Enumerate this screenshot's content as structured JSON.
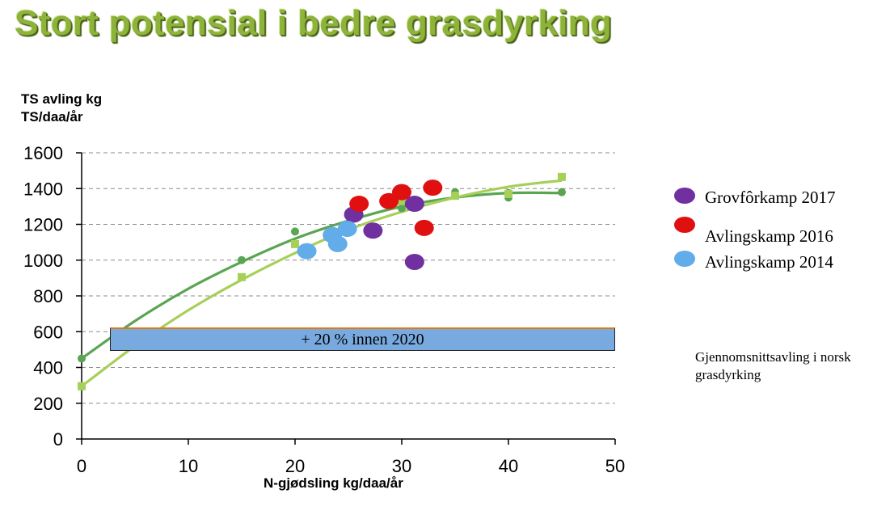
{
  "title": "Stort potensial i bedre grasdyrking",
  "annotation_box": "+ 20 % innen 2020",
  "note": "Gjennomsnittsavling i norsk grasdyrking",
  "colors": {
    "title": "#8db33a",
    "dark_green": "#5aa552",
    "light_green": "#a6d059",
    "purple": "#7030a0",
    "red": "#e01010",
    "light_blue": "#62acea",
    "box_fill": "#78aae0"
  },
  "chart_data": {
    "type": "scatter",
    "ylabel": "TS avling kg TS/daa/år",
    "xlabel": "N-gjødsling kg/daa/år",
    "xlim": [
      0,
      50
    ],
    "ylim": [
      0,
      1600
    ],
    "xticks": [
      0,
      10,
      20,
      30,
      40,
      50
    ],
    "yticks": [
      0,
      200,
      400,
      600,
      800,
      1000,
      1200,
      1400,
      1600
    ],
    "grid": "horizontal-dashed",
    "legend_position": "right",
    "trend_series": [
      {
        "marker": "circle",
        "color": "#5aa552",
        "points": [
          [
            0,
            450
          ],
          [
            15,
            1000
          ],
          [
            20,
            1160
          ],
          [
            30,
            1290
          ],
          [
            35,
            1380
          ],
          [
            40,
            1350
          ],
          [
            40,
            1375
          ],
          [
            45,
            1380
          ]
        ],
        "curve": [
          [
            0,
            450
          ],
          [
            5,
            660
          ],
          [
            10,
            840
          ],
          [
            15,
            990
          ],
          [
            20,
            1120
          ],
          [
            25,
            1220
          ],
          [
            30,
            1300
          ],
          [
            35,
            1350
          ],
          [
            40,
            1375
          ],
          [
            45,
            1375
          ]
        ]
      },
      {
        "marker": "square",
        "color": "#a6d059",
        "points": [
          [
            0,
            295
          ],
          [
            15,
            905
          ],
          [
            20,
            1090
          ],
          [
            30,
            1330
          ],
          [
            35,
            1360
          ],
          [
            40,
            1370
          ],
          [
            45,
            1465
          ]
        ],
        "curve": [
          [
            0,
            295
          ],
          [
            5,
            520
          ],
          [
            10,
            720
          ],
          [
            15,
            890
          ],
          [
            20,
            1040
          ],
          [
            25,
            1170
          ],
          [
            30,
            1270
          ],
          [
            35,
            1350
          ],
          [
            40,
            1410
          ],
          [
            45,
            1445
          ]
        ]
      }
    ],
    "series": [
      {
        "name": "Grovfôrkamp 2017",
        "color": "#7030a0",
        "points": [
          [
            25.5,
            1255
          ],
          [
            27.3,
            1165
          ],
          [
            31.2,
            1315
          ],
          [
            31.2,
            990
          ]
        ]
      },
      {
        "name": "Avlingskamp 2016",
        "color": "#e01010",
        "points": [
          [
            26,
            1315
          ],
          [
            28.8,
            1330
          ],
          [
            30,
            1380
          ],
          [
            32.1,
            1180
          ],
          [
            32.9,
            1405
          ]
        ]
      },
      {
        "name": "Avlingskamp 2014",
        "color": "#62acea",
        "points": [
          [
            21.1,
            1050
          ],
          [
            23.5,
            1140
          ],
          [
            24,
            1090
          ],
          [
            24.9,
            1175
          ]
        ]
      }
    ]
  }
}
